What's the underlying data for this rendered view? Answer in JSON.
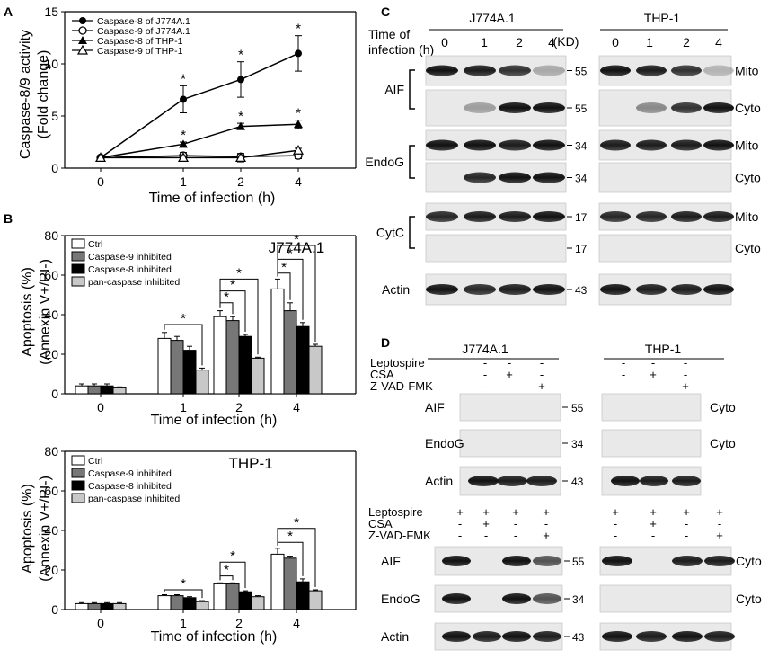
{
  "panels": {
    "A": "A",
    "B": "B",
    "C": "C",
    "D": "D"
  },
  "panelA": {
    "ylabel_line1": "Caspase-8/9 activity",
    "ylabel_line2": "(Fold change)",
    "xlabel": "Time of infection (h)",
    "legend": [
      "Caspase-8 of J774A.1",
      "Caspase-9 of J774A.1",
      "Caspase-8 of THP-1",
      "Caspase-9 of THP-1"
    ],
    "yticks": [
      "0",
      "5",
      "10",
      "15"
    ],
    "xticks": [
      "0",
      "1",
      "2",
      "4"
    ],
    "star": "*"
  },
  "panelB": {
    "title_top": "J774A.1",
    "title_bottom": "THP-1",
    "ylabel_line1": "Apoptosis (%)",
    "ylabel_line2": "(Annexin V+/PI-)",
    "xlabel": "Time of infection (h)",
    "legend": [
      "Ctrl",
      "Caspase-9 inhibited",
      "Caspase-8 inhibited",
      "pan-caspase inhibited"
    ],
    "yticks": [
      "0",
      "20",
      "40",
      "60",
      "80"
    ],
    "xticks": [
      "0",
      "1",
      "2",
      "4"
    ],
    "star": "*"
  },
  "panelC": {
    "cell_lines": [
      "J774A.1",
      "THP-1"
    ],
    "time_label_line1": "Time of",
    "time_label_line2": "infection (h)",
    "times": [
      "0",
      "1",
      "2",
      "4"
    ],
    "kd": "(KD)",
    "proteins": [
      "AIF",
      "EndoG",
      "CytC",
      "Actin"
    ],
    "fractions": [
      "Mito",
      "Cyto"
    ],
    "markers": [
      "55",
      "55",
      "34",
      "34",
      "17",
      "17",
      "43"
    ]
  },
  "panelD": {
    "cell_lines": [
      "J774A.1",
      "THP-1"
    ],
    "treatment_labels": [
      "Leptospire",
      "CSA",
      "Z-VAD-FMK"
    ],
    "treatments_top": [
      [
        "-",
        "-",
        "-"
      ],
      [
        "-",
        "+",
        "-"
      ],
      [
        "-",
        "-",
        "+"
      ]
    ],
    "treatments_bottom": [
      [
        "+",
        "+",
        "+",
        "+"
      ],
      [
        "-",
        "+",
        "-",
        "-"
      ],
      [
        "-",
        "-",
        "-",
        "+"
      ]
    ],
    "proteins": [
      "AIF",
      "EndoG",
      "Actin"
    ],
    "fraction": "Cyto",
    "markers": [
      "55",
      "34",
      "43"
    ]
  },
  "chart_data": [
    {
      "type": "line",
      "xlabel": "Time of infection (h)",
      "ylabel": "Caspase-8/9 activity (Fold change)",
      "categories": [
        "0",
        "1",
        "2",
        "4"
      ],
      "ylim": [
        0,
        15
      ],
      "series": [
        {
          "name": "Caspase-8 of J774A.1",
          "values": [
            1.0,
            6.6,
            8.5,
            11.0
          ],
          "errors": [
            0.2,
            1.3,
            1.7,
            1.7
          ],
          "significant": [
            false,
            true,
            true,
            true
          ]
        },
        {
          "name": "Caspase-9 of J774A.1",
          "values": [
            1.0,
            1.2,
            1.1,
            1.2
          ],
          "errors": [
            0.1,
            0.3,
            0.3,
            0.3
          ],
          "significant": [
            false,
            false,
            false,
            false
          ]
        },
        {
          "name": "Caspase-8 of THP-1",
          "values": [
            1.0,
            2.3,
            4.0,
            4.2
          ],
          "errors": [
            0.1,
            0.2,
            0.3,
            0.4
          ],
          "significant": [
            false,
            true,
            true,
            true
          ]
        },
        {
          "name": "Caspase-9 of THP-1",
          "values": [
            1.0,
            1.0,
            1.0,
            1.7
          ],
          "errors": [
            0.1,
            0.2,
            0.4,
            0.2
          ],
          "significant": [
            false,
            false,
            false,
            false
          ]
        }
      ]
    },
    {
      "type": "bar",
      "title": "J774A.1",
      "xlabel": "Time of infection (h)",
      "ylabel": "Apoptosis (%) (Annexin V+/PI-)",
      "categories": [
        "0",
        "1",
        "2",
        "4"
      ],
      "ylim": [
        0,
        80
      ],
      "series": [
        {
          "name": "Ctrl",
          "values": [
            4,
            28,
            39,
            53
          ],
          "errors": [
            1,
            3,
            3,
            5
          ]
        },
        {
          "name": "Caspase-9 inhibited",
          "values": [
            4,
            27,
            37,
            42
          ],
          "errors": [
            1,
            2,
            2,
            4
          ]
        },
        {
          "name": "Caspase-8 inhibited",
          "values": [
            4,
            22,
            29,
            34
          ],
          "errors": [
            1,
            2,
            1,
            2
          ]
        },
        {
          "name": "pan-caspase inhibited",
          "values": [
            3,
            12,
            18,
            24
          ],
          "errors": [
            0.5,
            1,
            0.5,
            1
          ]
        }
      ]
    },
    {
      "type": "bar",
      "title": "THP-1",
      "xlabel": "Time of infection (h)",
      "ylabel": "Apoptosis (%) (Annexin V+/PI-)",
      "categories": [
        "0",
        "1",
        "2",
        "4"
      ],
      "ylim": [
        0,
        80
      ],
      "series": [
        {
          "name": "Ctrl",
          "values": [
            3,
            7,
            13,
            28
          ],
          "errors": [
            0.5,
            0.5,
            0.5,
            3
          ]
        },
        {
          "name": "Caspase-9 inhibited",
          "values": [
            3,
            7,
            13,
            26
          ],
          "errors": [
            0.5,
            0.5,
            0.5,
            1
          ]
        },
        {
          "name": "Caspase-8 inhibited",
          "values": [
            3,
            6,
            9,
            14
          ],
          "errors": [
            0.5,
            0.5,
            0.5,
            1.5
          ]
        },
        {
          "name": "pan-caspase inhibited",
          "values": [
            3,
            4,
            6.5,
            9.5
          ],
          "errors": [
            0.5,
            0.5,
            0.5,
            0.5
          ]
        }
      ]
    }
  ]
}
